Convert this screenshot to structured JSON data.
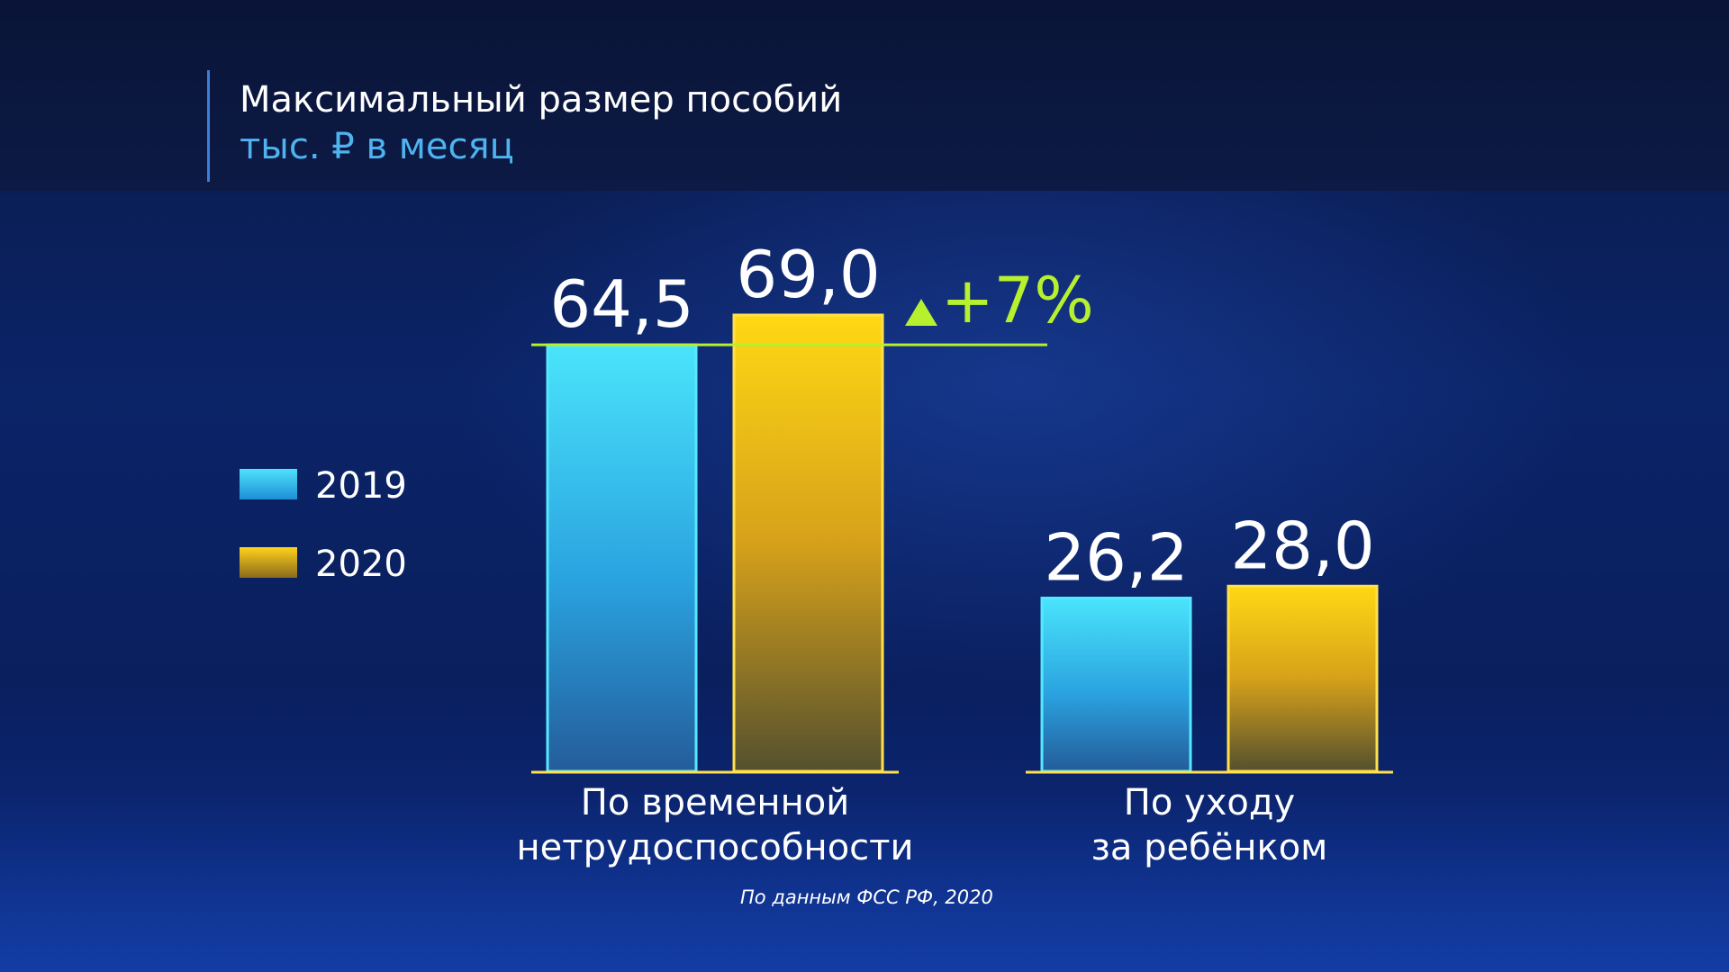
{
  "chart_data": {
    "type": "bar",
    "title": "Максимальный размер пособий",
    "subtitle": "тыс. ₽ в месяц",
    "categories": [
      "По временной нетрудоспособности",
      "По уходу за ребёнком"
    ],
    "category_lines": [
      [
        "По временной",
        "нетрудоспособности"
      ],
      [
        "По уходу",
        "за ребёнком"
      ]
    ],
    "series": [
      {
        "name": "2019",
        "values": [
          64.5,
          26.2
        ],
        "labels": [
          "64,5",
          "26,2"
        ],
        "color": "#3fd8f4"
      },
      {
        "name": "2020",
        "values": [
          69.0,
          28.0
        ],
        "labels": [
          "69,0",
          "28,0"
        ],
        "color": "#ffd21a"
      }
    ],
    "annotation": {
      "text": "+7%",
      "category": 0,
      "color": "#b6f02e"
    },
    "legend_position": "left",
    "grid": false,
    "ylim": [
      0,
      69.0
    ],
    "source": "По данным ФСС РФ, 2020"
  }
}
